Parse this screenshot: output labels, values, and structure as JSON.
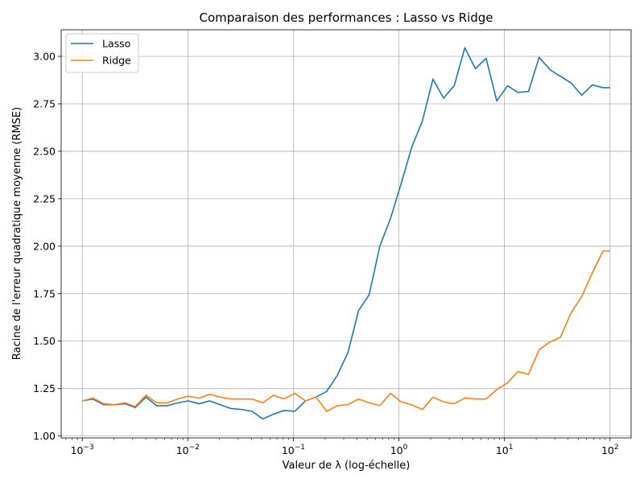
{
  "chart_data": {
    "type": "line",
    "title": "Comparaison des performances : Lasso vs Ridge",
    "xlabel": "Valeur de λ (log-échelle)",
    "ylabel": "Racine de l'erreur quadratique moyenne (RMSE)",
    "xscale": "log",
    "xlim": [
      0.000631,
      158.5
    ],
    "ylim": [
      0.99,
      3.14
    ],
    "grid": true,
    "legend_position": "top-left",
    "xticks": [
      {
        "value": 0.001,
        "base": "10",
        "exp": "−3"
      },
      {
        "value": 0.01,
        "base": "10",
        "exp": "−2"
      },
      {
        "value": 0.1,
        "base": "10",
        "exp": "−1"
      },
      {
        "value": 1,
        "base": "10",
        "exp": "0"
      },
      {
        "value": 10,
        "base": "10",
        "exp": "1"
      },
      {
        "value": 100,
        "base": "10",
        "exp": "2"
      }
    ],
    "yticks": [
      {
        "value": 1.0,
        "label": "1.00"
      },
      {
        "value": 1.25,
        "label": "1.25"
      },
      {
        "value": 1.5,
        "label": "1.50"
      },
      {
        "value": 1.75,
        "label": "1.75"
      },
      {
        "value": 2.0,
        "label": "2.00"
      },
      {
        "value": 2.25,
        "label": "2.25"
      },
      {
        "value": 2.5,
        "label": "2.50"
      },
      {
        "value": 2.75,
        "label": "2.75"
      },
      {
        "value": 3.0,
        "label": "3.00"
      }
    ],
    "x": [
      0.001,
      0.00126,
      0.00159,
      0.002,
      0.00253,
      0.00318,
      0.00401,
      0.00506,
      0.00638,
      0.00805,
      0.0101,
      0.0128,
      0.0161,
      0.0203,
      0.0256,
      0.0323,
      0.0407,
      0.0513,
      0.0647,
      0.0816,
      0.103,
      0.13,
      0.164,
      0.207,
      0.261,
      0.329,
      0.414,
      0.523,
      0.659,
      0.831,
      1.05,
      1.32,
      1.67,
      2.1,
      2.65,
      3.34,
      4.21,
      5.31,
      6.7,
      8.45,
      10.7,
      13.4,
      16.9,
      21.3,
      26.9,
      33.9,
      42.8,
      54.0,
      68.0,
      85.8,
      100
    ],
    "series": [
      {
        "name": "Lasso",
        "color": "#1f77b4",
        "values": [
          1.185,
          1.195,
          1.165,
          1.165,
          1.17,
          1.15,
          1.205,
          1.16,
          1.16,
          1.175,
          1.185,
          1.17,
          1.185,
          1.165,
          1.145,
          1.14,
          1.13,
          1.09,
          1.115,
          1.135,
          1.13,
          1.185,
          1.205,
          1.235,
          1.32,
          1.44,
          1.66,
          1.745,
          2.0,
          2.145,
          2.33,
          2.52,
          2.66,
          2.88,
          2.78,
          2.845,
          3.045,
          2.935,
          2.99,
          2.765,
          2.845,
          2.81,
          2.815,
          2.995,
          2.93,
          2.895,
          2.86,
          2.795,
          2.85,
          2.835,
          2.835
        ]
      },
      {
        "name": "Ridge",
        "color": "#ff7f0e",
        "values": [
          1.185,
          1.2,
          1.17,
          1.165,
          1.175,
          1.155,
          1.215,
          1.175,
          1.175,
          1.195,
          1.21,
          1.2,
          1.22,
          1.205,
          1.195,
          1.195,
          1.195,
          1.175,
          1.215,
          1.195,
          1.225,
          1.185,
          1.205,
          1.13,
          1.16,
          1.165,
          1.195,
          1.175,
          1.16,
          1.225,
          1.18,
          1.165,
          1.14,
          1.205,
          1.18,
          1.17,
          1.2,
          1.195,
          1.195,
          1.245,
          1.28,
          1.34,
          1.325,
          1.455,
          1.495,
          1.52,
          1.65,
          1.735,
          1.86,
          1.975,
          1.975
        ]
      }
    ]
  }
}
